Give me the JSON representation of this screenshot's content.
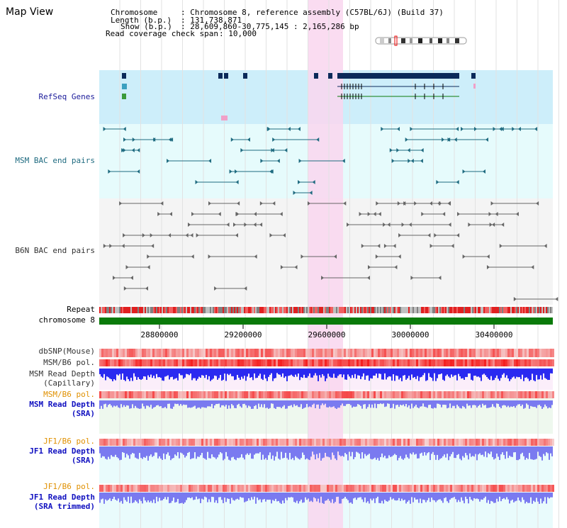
{
  "view_title": "Map View",
  "info": {
    "chromosome_key": "Chromosome",
    "chromosome_val": ": Chromosome 8, reference assembly (C57BL/6J) (Build 37)",
    "length_key": "Length (b.p.)",
    "length_val": ": 131,738,871",
    "show_key": "Show (b.p.)",
    "show_val": ": 28,609,860-30,775,145 : 2,165,286 bp",
    "coverage_key": "Read coverage check span",
    "coverage_val": ": 10,000"
  },
  "tracks": {
    "refseq": "RefSeq Genes",
    "msm_bac": "MSM BAC end pairs",
    "b6n_bac": "B6N BAC end pairs",
    "repeat": "Repeat",
    "chromosome": "chromosome 8",
    "dbsnp": "dbSNP(Mouse)",
    "msm_b6_pol_1": "MSM/B6 pol.",
    "msm_depth_cap_1": "MSM Read Depth",
    "msm_depth_cap_2": "(Capillary)",
    "msm_b6_pol_2": "MSM/B6 pol.",
    "msm_depth_sra_1": "MSM Read Depth",
    "msm_depth_sra_2": "(SRA)",
    "jf1_b6_pol_1": "JF1/B6 pol.",
    "jf1_depth_sra_1": "JF1 Read Depth",
    "jf1_depth_sra_2": "(SRA)",
    "jf1_b6_pol_2": "JF1/B6 pol.",
    "jf1_depth_trim_1": "JF1 Read Depth",
    "jf1_depth_trim_2": "(SRA trimmed)"
  },
  "axis": {
    "ticks": [
      "28800000",
      "29200000",
      "29600000",
      "30000000",
      "30400000"
    ]
  },
  "colors": {
    "highlight": "#f9d6ee",
    "refseq_bg": "#cdeefa",
    "bac_bg": "#e6fbfc",
    "chromosome": "#0a7a0a",
    "msm_bac": "#1f6b80",
    "b6n_bac": "#666666",
    "depth_blue": "#2a2af0",
    "depth_light": "#7a7af0"
  }
}
